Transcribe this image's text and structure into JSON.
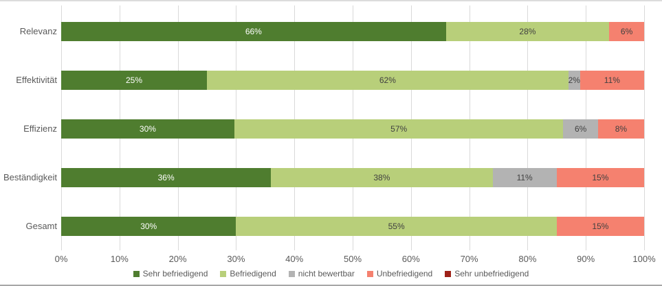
{
  "chart_data": {
    "type": "bar",
    "orientation": "horizontal",
    "stacked": true,
    "title": "",
    "xlabel": "",
    "ylabel": "",
    "xlim": [
      0,
      100
    ],
    "grid": true,
    "legend_position": "bottom",
    "value_suffix": "%",
    "categories": [
      "Relevanz",
      "Effektivität",
      "Effizienz",
      "Beständigkeit",
      "Gesamt"
    ],
    "series": [
      {
        "name": "Sehr befriedigend",
        "color": "#4f7d2f",
        "label_color": "#ffffff",
        "values": [
          66,
          25,
          30,
          36,
          30
        ]
      },
      {
        "name": "Befriedigend",
        "color": "#b8cf7a",
        "label_color": "#404040",
        "values": [
          28,
          62,
          57,
          38,
          55
        ]
      },
      {
        "name": "nicht bewertbar",
        "color": "#b3b3b3",
        "label_color": "#404040",
        "values": [
          0,
          2,
          6,
          11,
          0
        ]
      },
      {
        "name": "Unbefriedigend",
        "color": "#f5816f",
        "label_color": "#404040",
        "values": [
          6,
          11,
          8,
          15,
          15
        ]
      },
      {
        "name": "Sehr unbefriedigend",
        "color": "#9e2118",
        "label_color": "#ffffff",
        "values": [
          0,
          0,
          0,
          0,
          0
        ]
      }
    ],
    "x_ticks": [
      "0%",
      "10%",
      "20%",
      "30%",
      "40%",
      "50%",
      "60%",
      "70%",
      "80%",
      "90%",
      "100%"
    ]
  },
  "layout_colors": {
    "gridline": "#d9d9d9",
    "axis_text": "#595959",
    "top_border": "#dcdcdc",
    "bottom_border": "#a6a6a6"
  }
}
